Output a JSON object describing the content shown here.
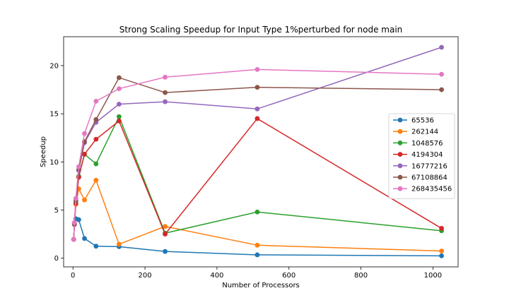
{
  "chart_data": {
    "type": "line",
    "title": "Strong Scaling Speedup for Input Type 1%perturbed for node main",
    "xlabel": "Number of Processors",
    "ylabel": "Speedup",
    "xlim": [
      -26,
      1070
    ],
    "ylim": [
      -0.9,
      23.0
    ],
    "xticks": [
      0,
      200,
      400,
      600,
      800,
      1000
    ],
    "yticks": [
      0,
      5,
      10,
      15,
      20
    ],
    "grid": false,
    "legend_position": "right",
    "x": [
      2,
      4,
      8,
      16,
      32,
      64,
      128,
      256,
      512,
      1024
    ],
    "series": [
      {
        "name": "65536",
        "color": "#1f77b4",
        "values": [
          1.95,
          3.6,
          4.1,
          4.0,
          2.05,
          1.25,
          1.2,
          0.7,
          0.35,
          0.25
        ]
      },
      {
        "name": "262144",
        "color": "#ff7f0e",
        "values": [
          1.95,
          3.7,
          5.6,
          7.2,
          6.05,
          8.1,
          1.45,
          3.3,
          1.35,
          0.75
        ]
      },
      {
        "name": "1048576",
        "color": "#2ca02c",
        "values": [
          1.95,
          3.6,
          6.0,
          8.5,
          10.8,
          9.8,
          14.7,
          2.6,
          4.8,
          2.85
        ]
      },
      {
        "name": "4194304",
        "color": "#d62728",
        "values": [
          1.95,
          3.5,
          5.7,
          8.4,
          10.8,
          12.35,
          14.25,
          2.5,
          14.5,
          3.1
        ]
      },
      {
        "name": "16777216",
        "color": "#9467bd",
        "values": [
          1.95,
          3.6,
          6.2,
          9.1,
          12.0,
          14.1,
          16.0,
          16.25,
          15.5,
          21.9
        ]
      },
      {
        "name": "67108864",
        "color": "#8c564b",
        "values": [
          1.95,
          3.5,
          5.9,
          9.2,
          12.1,
          14.4,
          18.75,
          17.2,
          17.75,
          17.5
        ]
      },
      {
        "name": "268435456",
        "color": "#e377c2",
        "values": [
          1.95,
          3.7,
          6.2,
          9.5,
          12.95,
          16.3,
          17.6,
          18.8,
          19.6,
          19.1
        ]
      }
    ]
  }
}
